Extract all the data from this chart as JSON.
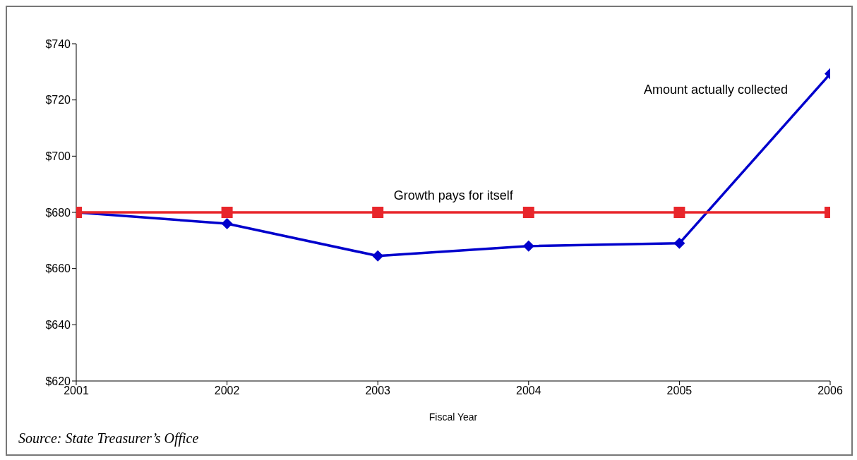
{
  "chart_data": {
    "type": "line",
    "xlabel": "Fiscal Year",
    "x": [
      2001,
      2002,
      2003,
      2004,
      2005,
      2006
    ],
    "xlim": [
      2001,
      2006
    ],
    "xticks": [
      2001,
      2002,
      2003,
      2004,
      2005,
      2006
    ],
    "ylim": [
      620,
      740
    ],
    "yticks": [
      {
        "value": 620,
        "label": "$620"
      },
      {
        "value": 640,
        "label": "$640"
      },
      {
        "value": 660,
        "label": "$660"
      },
      {
        "value": 680,
        "label": "$680"
      },
      {
        "value": 700,
        "label": "$700"
      },
      {
        "value": 720,
        "label": "$720"
      },
      {
        "value": 740,
        "label": "$740"
      }
    ],
    "series": [
      {
        "name": "Amount actually collected",
        "color": "#0000cc",
        "marker": "diamond",
        "values": [
          680,
          676,
          664.5,
          668,
          669,
          729.3
        ]
      },
      {
        "name": "Growth pays for itself",
        "color": "#e8262b",
        "marker": "square",
        "values": [
          680,
          680,
          680,
          680,
          680,
          680
        ]
      }
    ],
    "line_style": "solid",
    "annotations": [
      "Source: State Treasurer’s Office"
    ]
  }
}
